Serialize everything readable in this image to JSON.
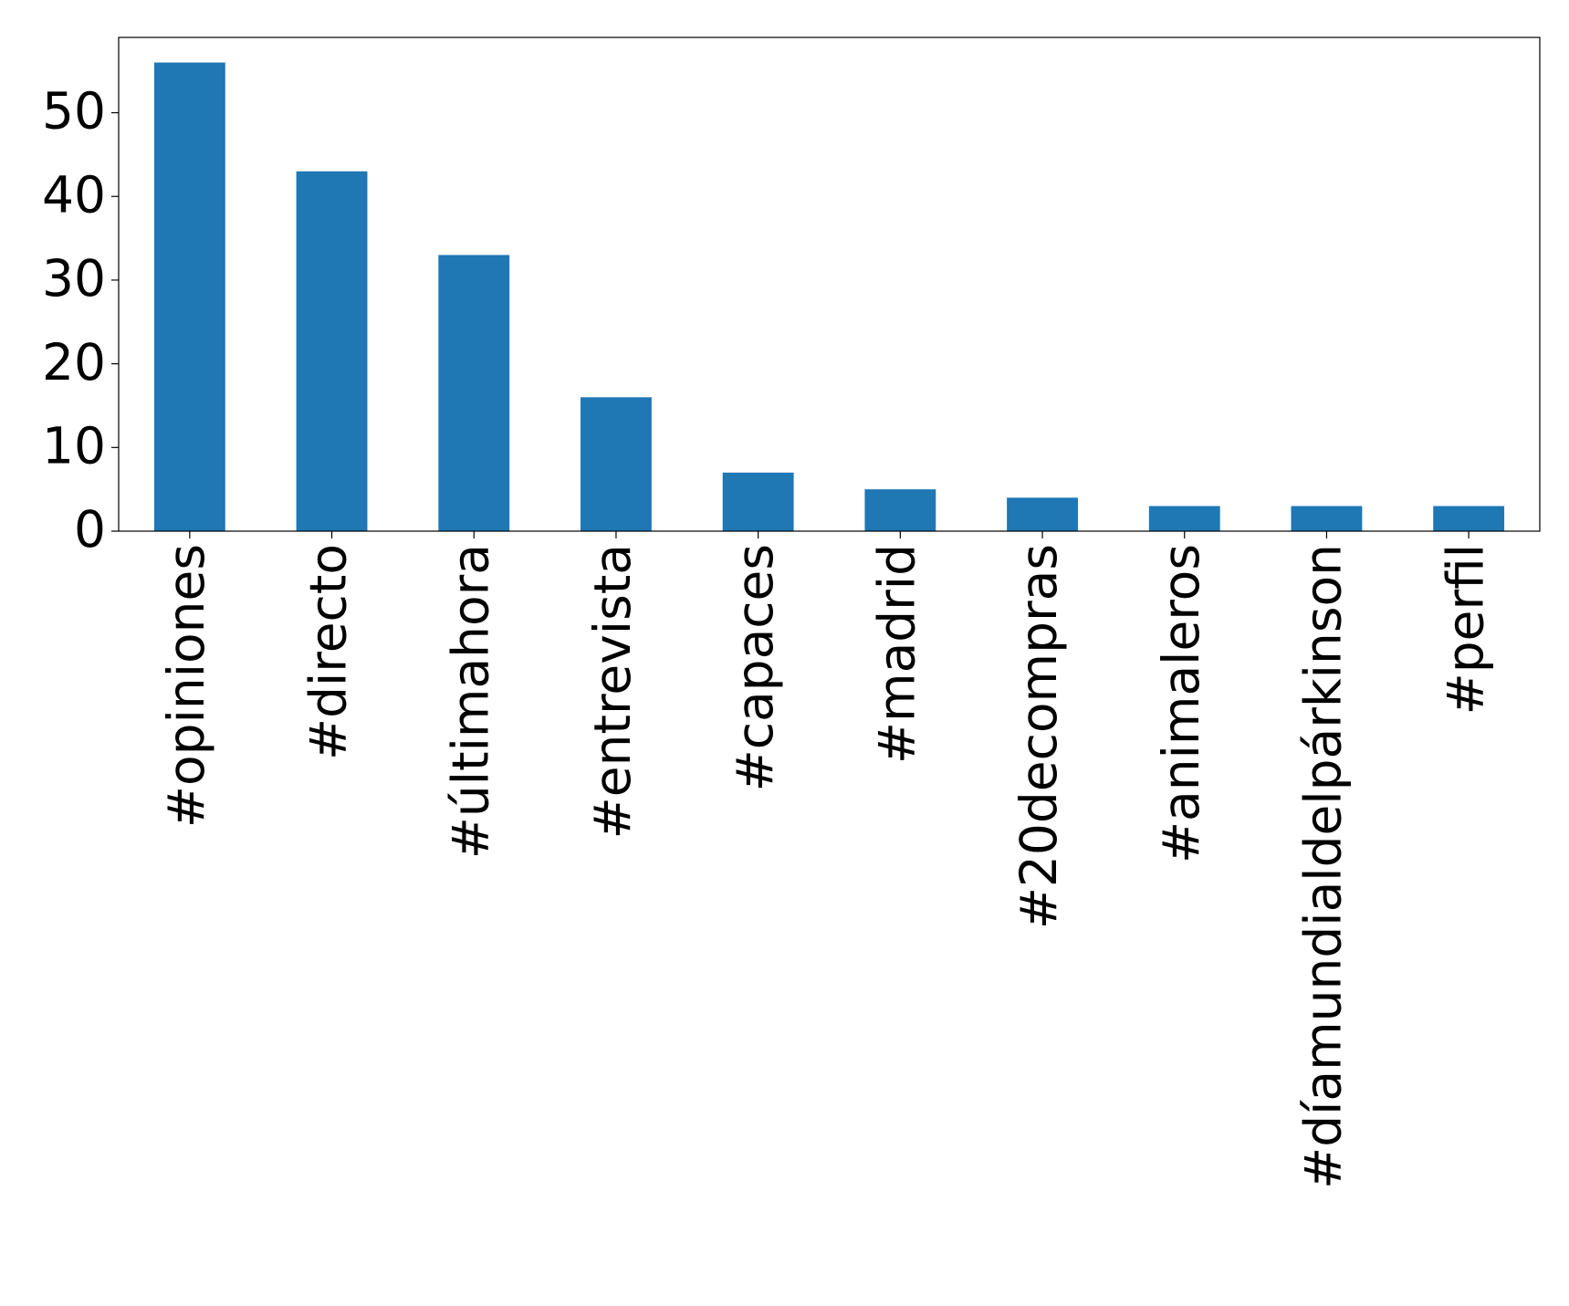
{
  "chart_data": {
    "type": "bar",
    "categories": [
      "#opiniones",
      "#directo",
      "#últimahora",
      "#entrevista",
      "#capaces",
      "#madrid",
      "#20decompras",
      "#animaleros",
      "#díamundialdelpárkinson",
      "#perfil"
    ],
    "values": [
      56,
      43,
      33,
      16,
      7,
      5,
      4,
      3,
      3,
      3
    ],
    "color": "#1f77b4",
    "ylim": [
      0,
      59
    ],
    "yticks": [
      0,
      10,
      20,
      30,
      40,
      50
    ],
    "grid": false
  }
}
